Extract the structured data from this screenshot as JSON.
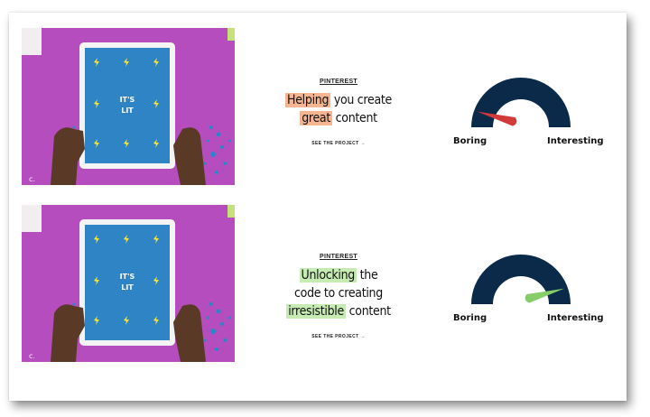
{
  "projects": [
    {
      "brand": "PINTEREST",
      "headline_highlight_1": "Helping",
      "headline_rest_1": " you create",
      "headline_highlight_2": "great",
      "headline_rest_2": " content",
      "cta": "SEE THE PROJECT →",
      "thumb_text_1": "IT'S",
      "thumb_text_2": "LIT",
      "highlight_color": "#f4b590",
      "gauge": {
        "left_label": "Boring",
        "right_label": "Interesting",
        "level": 0.05,
        "needle_color": "#d23a3a",
        "arc_color": "#0b2a4a"
      }
    },
    {
      "brand": "PINTEREST",
      "headline_highlight_1": "Unlocking",
      "headline_rest_1": " the",
      "headline_plain_2": "code to creating",
      "headline_highlight_3": "irresistible",
      "headline_rest_3": " content",
      "cta": "SEE THE PROJECT →",
      "thumb_text_1": "IT'S",
      "thumb_text_2": "LIT",
      "highlight_color": "#c6ecb4",
      "gauge": {
        "left_label": "Boring",
        "right_label": "Interesting",
        "level": 0.95,
        "needle_color": "#86cc68",
        "arc_color": "#0b2a4a"
      }
    }
  ]
}
